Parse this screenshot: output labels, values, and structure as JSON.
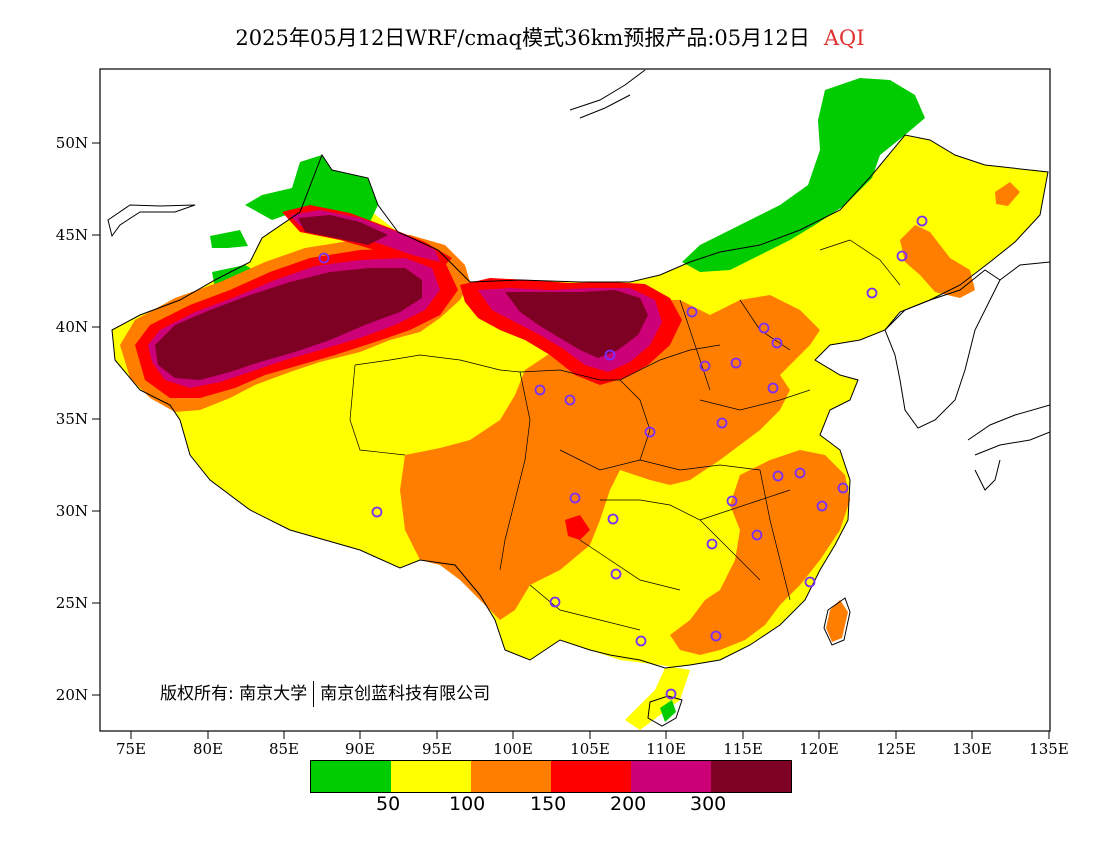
{
  "title": {
    "main": "2025年05月12日WRF/cmaq模式36km预报产品:05月12日",
    "product": "AQI"
  },
  "axes": {
    "x_ticks": [
      "75E",
      "80E",
      "85E",
      "90E",
      "95E",
      "100E",
      "105E",
      "110E",
      "115E",
      "120E",
      "125E",
      "130E",
      "135E"
    ],
    "y_ticks": [
      "50N",
      "45N",
      "40N",
      "35N",
      "30N",
      "25N",
      "20N"
    ]
  },
  "copyright": {
    "prefix": "版权所有:",
    "org1": "南京大学",
    "org2": "南京创蓝科技有限公司"
  },
  "legend": {
    "colors": [
      "#00cc00",
      "#ffff00",
      "#ff7e00",
      "#ff0000",
      "#cc0077",
      "#7e0023"
    ],
    "thresholds": [
      "50",
      "100",
      "150",
      "200",
      "300"
    ]
  },
  "colors": {
    "good": "#00cc00",
    "moderate": "#ffff00",
    "unhealthy_sensitive": "#ff7e00",
    "unhealthy": "#ff0000",
    "very_unhealthy": "#cc0077",
    "hazardous": "#7e0023",
    "station_marker": "#7b2ff7",
    "title_accent": "#e03030"
  }
}
